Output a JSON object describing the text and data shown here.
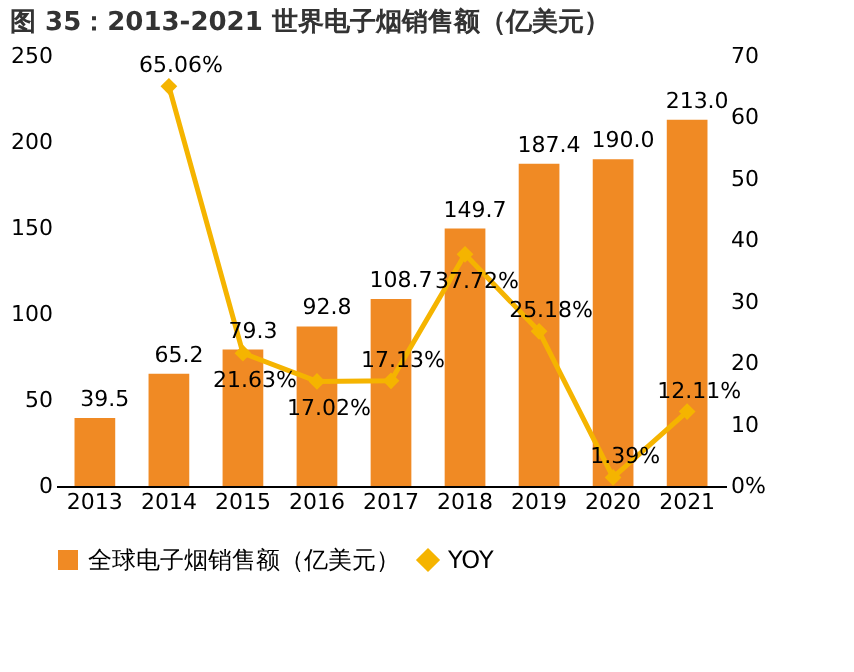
{
  "chart_data": {
    "type": "bar",
    "title": "图 35：2013-2021 世界电子烟销售额（亿美元）",
    "categories": [
      "2013",
      "2014",
      "2015",
      "2016",
      "2017",
      "2018",
      "2019",
      "2020",
      "2021"
    ],
    "series": [
      {
        "name": "全球电子烟销售额（亿美元）",
        "color": "#f08a24",
        "values": [
          39.5,
          65.2,
          79.3,
          92.8,
          108.7,
          149.7,
          187.4,
          190.0,
          213.0
        ],
        "value_labels": [
          "39.5",
          "65.2",
          "79.3",
          "92.8",
          "108.7",
          "149.7",
          "187.4",
          "190.0",
          "213.0"
        ]
      },
      {
        "name": "YOY",
        "type": "line",
        "axis": "y2",
        "color": "#f5b400",
        "marker": "diamond",
        "values": [
          null,
          65.06,
          21.63,
          17.02,
          17.13,
          37.72,
          25.18,
          1.39,
          12.11
        ],
        "value_labels": [
          null,
          "65.06%",
          "21.63%",
          "17.02%",
          "17.13%",
          "37.72%",
          "25.18%",
          "1.39%",
          "12.11%"
        ]
      }
    ],
    "ylim": [
      0,
      250
    ],
    "yticks": [
      0,
      50,
      100,
      150,
      200,
      250
    ],
    "y2lim": [
      0,
      70
    ],
    "y2ticks": [
      {
        "value": 0,
        "label": "0%"
      },
      10,
      20,
      30,
      40,
      50,
      60,
      70
    ],
    "grid": false,
    "legend": "bottom"
  }
}
